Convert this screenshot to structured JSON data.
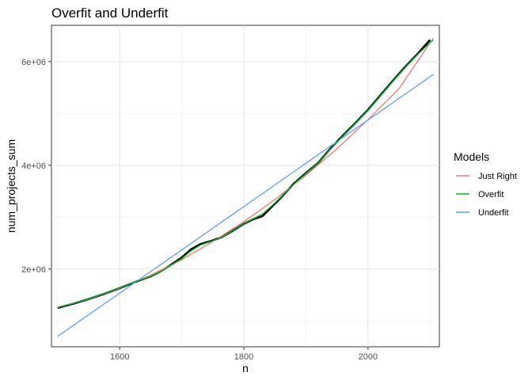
{
  "chart_data": {
    "type": "line",
    "title": "Overfit and Underfit",
    "xlabel": "n",
    "ylabel": "num_projects_sum",
    "xlim": [
      1490,
      2115
    ],
    "ylim": [
      500000,
      6700000
    ],
    "x_ticks": [
      1600,
      1800,
      2000
    ],
    "x_tick_labels": [
      "1600",
      "1800",
      "2000"
    ],
    "y_ticks": [
      2000000,
      4000000,
      6000000
    ],
    "y_tick_labels": [
      "2e+06",
      "4e+06",
      "6e+06"
    ],
    "grid": true,
    "legend": {
      "title": "Models",
      "position": "right"
    },
    "observed": {
      "color": "#000000",
      "x": [
        1500,
        1525,
        1550,
        1575,
        1600,
        1625,
        1650,
        1665,
        1680,
        1700,
        1715,
        1730,
        1750,
        1765,
        1780,
        1800,
        1815,
        1830,
        1845,
        1860,
        1880,
        1900,
        1920,
        1940,
        1960,
        1980,
        2000,
        2020,
        2040,
        2060,
        2080,
        2100
      ],
      "y": [
        1250000,
        1330000,
        1420000,
        1520000,
        1630000,
        1750000,
        1860000,
        1950000,
        2060000,
        2220000,
        2380000,
        2480000,
        2550000,
        2620000,
        2720000,
        2870000,
        2960000,
        3020000,
        3200000,
        3380000,
        3640000,
        3850000,
        4050000,
        4330000,
        4580000,
        4820000,
        5070000,
        5350000,
        5630000,
        5900000,
        6150000,
        6420000
      ]
    },
    "series": [
      {
        "name": "Just Right",
        "color": "#F8766D",
        "x": [
          1500,
          1550,
          1600,
          1650,
          1700,
          1750,
          1800,
          1850,
          1900,
          1950,
          2000,
          2050,
          2105
        ],
        "y": [
          1260000,
          1420000,
          1630000,
          1880000,
          2180000,
          2530000,
          2910000,
          3340000,
          3810000,
          4320000,
          4880000,
          5480000,
          6450000
        ]
      },
      {
        "name": "Overfit",
        "color": "#00BA38",
        "x": [
          1500,
          1525,
          1550,
          1575,
          1600,
          1625,
          1650,
          1665,
          1680,
          1700,
          1715,
          1730,
          1750,
          1765,
          1780,
          1800,
          1815,
          1830,
          1845,
          1860,
          1880,
          1900,
          1920,
          1940,
          1960,
          1980,
          2000,
          2020,
          2040,
          2060,
          2080,
          2105
        ],
        "y": [
          1260000,
          1335000,
          1425000,
          1525000,
          1635000,
          1750000,
          1860000,
          1945000,
          2050000,
          2200000,
          2350000,
          2460000,
          2545000,
          2620000,
          2720000,
          2870000,
          2970000,
          3060000,
          3220000,
          3390000,
          3630000,
          3840000,
          4050000,
          4320000,
          4570000,
          4810000,
          5060000,
          5340000,
          5620000,
          5890000,
          6140000,
          6420000
        ]
      },
      {
        "name": "Underfit",
        "color": "#619CFF",
        "x": [
          1500,
          2105
        ],
        "y": [
          700000,
          5750000
        ]
      }
    ]
  }
}
